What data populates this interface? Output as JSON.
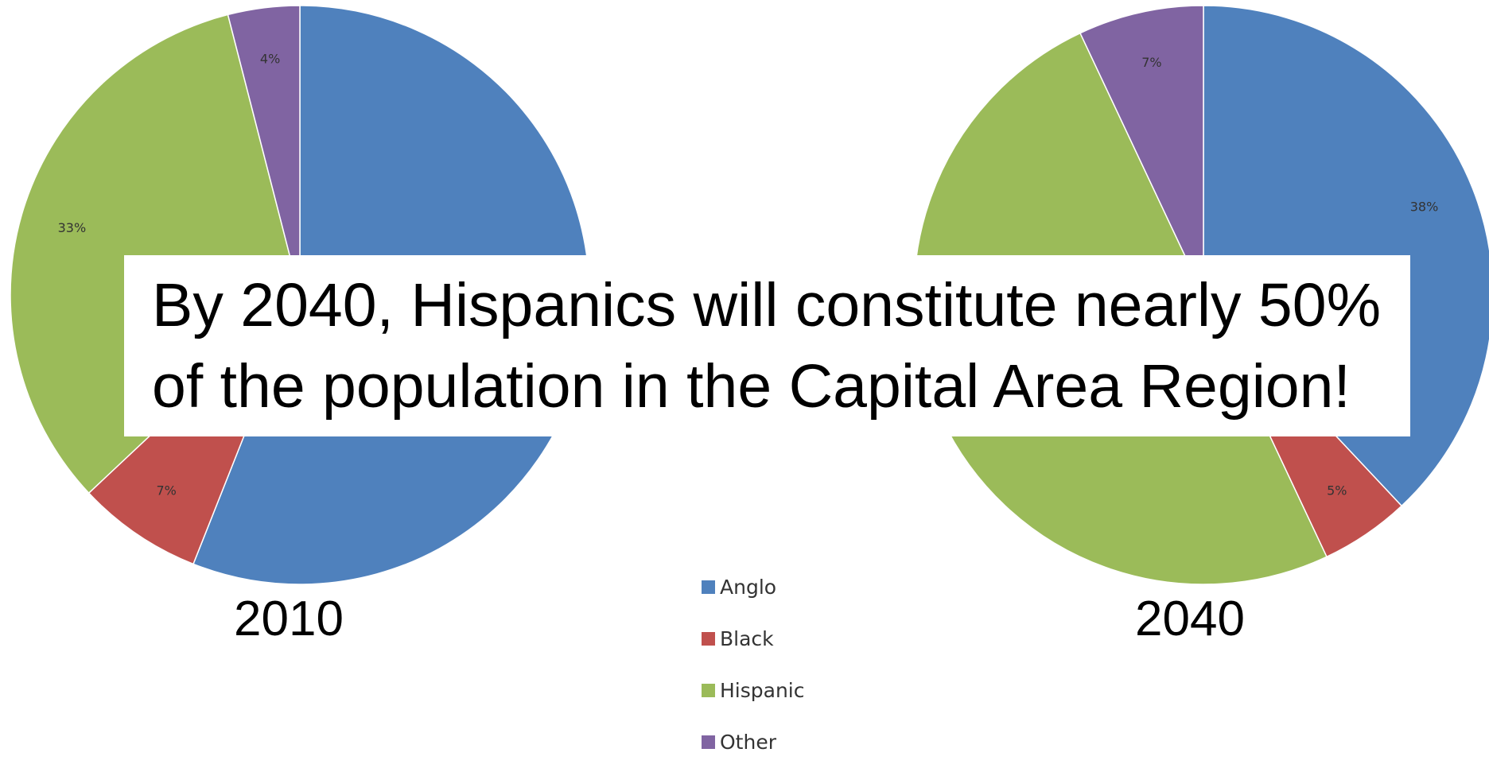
{
  "callout": {
    "line1": "By 2040, Hispanics will constitute nearly 50%",
    "line2": "of the population in the Capital Area Region!"
  },
  "chart_data": [
    {
      "type": "pie",
      "title": "2010",
      "categories": [
        "Anglo",
        "Black",
        "Hispanic",
        "Other"
      ],
      "values": [
        56,
        7,
        33,
        4
      ],
      "labels": [
        "",
        "7%",
        "33%",
        "4%"
      ],
      "colors": [
        "#4F81BD",
        "#C0504D",
        "#9BBB59",
        "#8064A2"
      ]
    },
    {
      "type": "pie",
      "title": "2040",
      "categories": [
        "Anglo",
        "Black",
        "Hispanic",
        "Other"
      ],
      "values": [
        38,
        5,
        50,
        7
      ],
      "labels": [
        "38%",
        "5%",
        "",
        "7%"
      ],
      "colors": [
        "#4F81BD",
        "#C0504D",
        "#9BBB59",
        "#8064A2"
      ]
    }
  ],
  "legend": [
    {
      "label": "Anglo",
      "color": "#4F81BD"
    },
    {
      "label": "Black",
      "color": "#C0504D"
    },
    {
      "label": "Hispanic",
      "color": "#9BBB59"
    },
    {
      "label": "Other",
      "color": "#8064A2"
    }
  ]
}
